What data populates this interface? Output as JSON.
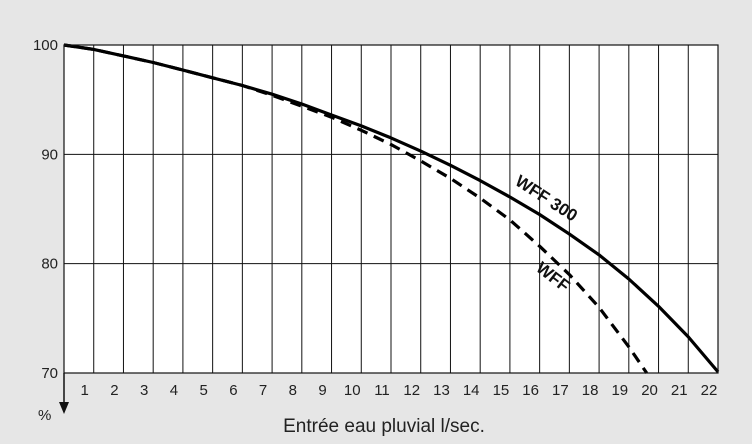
{
  "chart_data": {
    "type": "line",
    "title": "",
    "xlabel": "Entrée eau pluvial l/sec.",
    "ylabel": "%",
    "xlim": [
      0,
      22
    ],
    "ylim": [
      70,
      100
    ],
    "x_ticks": [
      1,
      2,
      3,
      4,
      5,
      6,
      7,
      8,
      9,
      10,
      11,
      12,
      13,
      14,
      15,
      16,
      17,
      18,
      19,
      20,
      21,
      22
    ],
    "y_ticks": [
      70,
      80,
      90,
      100
    ],
    "grid": true,
    "series": [
      {
        "name": "WFF 300",
        "style": "solid",
        "color": "#000000",
        "x": [
          0,
          1,
          2,
          3,
          4,
          5,
          6,
          7,
          8,
          9,
          10,
          11,
          12,
          13,
          14,
          15,
          16,
          17,
          18,
          19,
          20,
          21,
          22
        ],
        "y": [
          100,
          99.6,
          99.0,
          98.4,
          97.7,
          97.0,
          96.3,
          95.5,
          94.6,
          93.6,
          92.6,
          91.5,
          90.3,
          89.0,
          87.6,
          86.1,
          84.5,
          82.7,
          80.8,
          78.6,
          76.1,
          73.3,
          70.1
        ]
      },
      {
        "name": "WFF",
        "style": "dashed",
        "color": "#000000",
        "x": [
          0,
          1,
          2,
          3,
          4,
          5,
          6,
          7,
          8,
          9,
          10,
          11,
          12,
          13,
          14,
          15,
          16,
          17,
          18,
          19,
          19.6
        ],
        "y": [
          100,
          99.6,
          99.0,
          98.4,
          97.7,
          97.0,
          96.3,
          95.4,
          94.4,
          93.4,
          92.2,
          90.9,
          89.4,
          87.8,
          86.0,
          84.0,
          81.6,
          79.0,
          76.0,
          72.4,
          70
        ]
      }
    ]
  }
}
